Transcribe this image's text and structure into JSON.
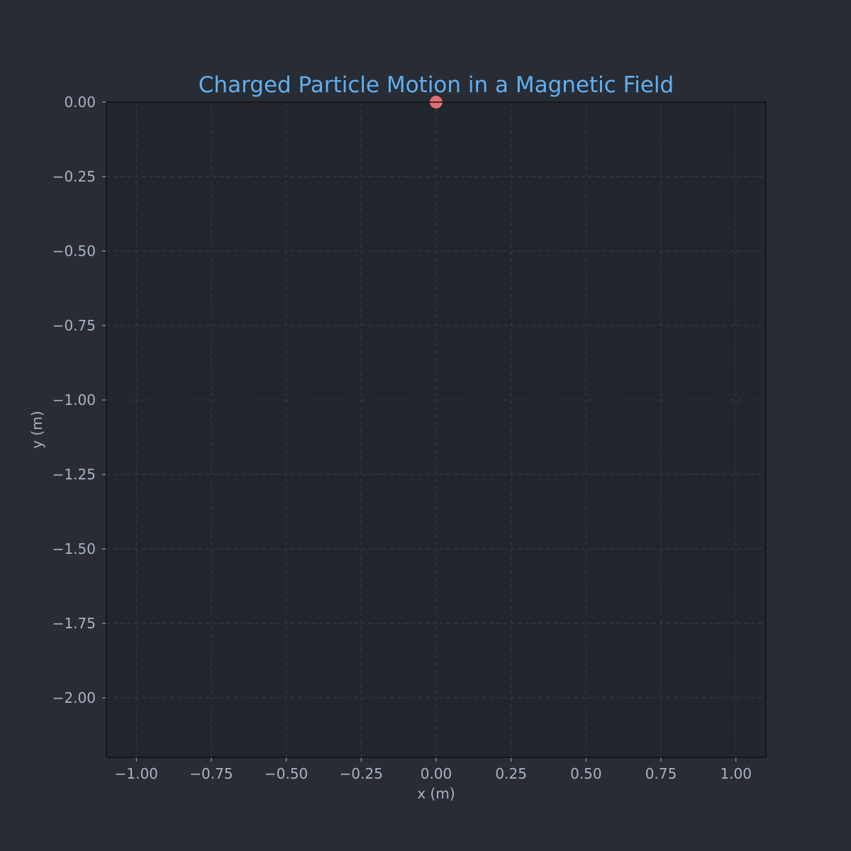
{
  "chart_data": {
    "type": "scatter",
    "title": "Charged Particle Motion in a Magnetic Field",
    "xlabel": "x (m)",
    "ylabel": "y (m)",
    "xlim": [
      -1.1,
      1.1
    ],
    "ylim": [
      -2.2,
      0.0
    ],
    "xticks": [
      -1.0,
      -0.75,
      -0.5,
      -0.25,
      0.0,
      0.25,
      0.5,
      0.75,
      1.0
    ],
    "yticks": [
      0.0,
      -0.25,
      -0.5,
      -0.75,
      -1.0,
      -1.25,
      -1.5,
      -1.75,
      -2.0
    ],
    "xtick_labels": [
      "−1.00",
      "−0.75",
      "−0.50",
      "−0.25",
      "0.00",
      "0.25",
      "0.50",
      "0.75",
      "1.00"
    ],
    "ytick_labels": [
      "0.00",
      "−0.25",
      "−0.50",
      "−0.75",
      "−1.00",
      "−1.25",
      "−1.50",
      "−1.75",
      "−2.00"
    ],
    "grid": true,
    "points": [
      {
        "x": 0.0,
        "y": 0.0
      }
    ],
    "colors": {
      "background": "#282c34",
      "plot_background": "#21252c",
      "title": "#61afef",
      "text": "#abb2bf",
      "grid": "#3a3f4b",
      "axes_edge": "#111111",
      "point": "#e06c75"
    }
  }
}
